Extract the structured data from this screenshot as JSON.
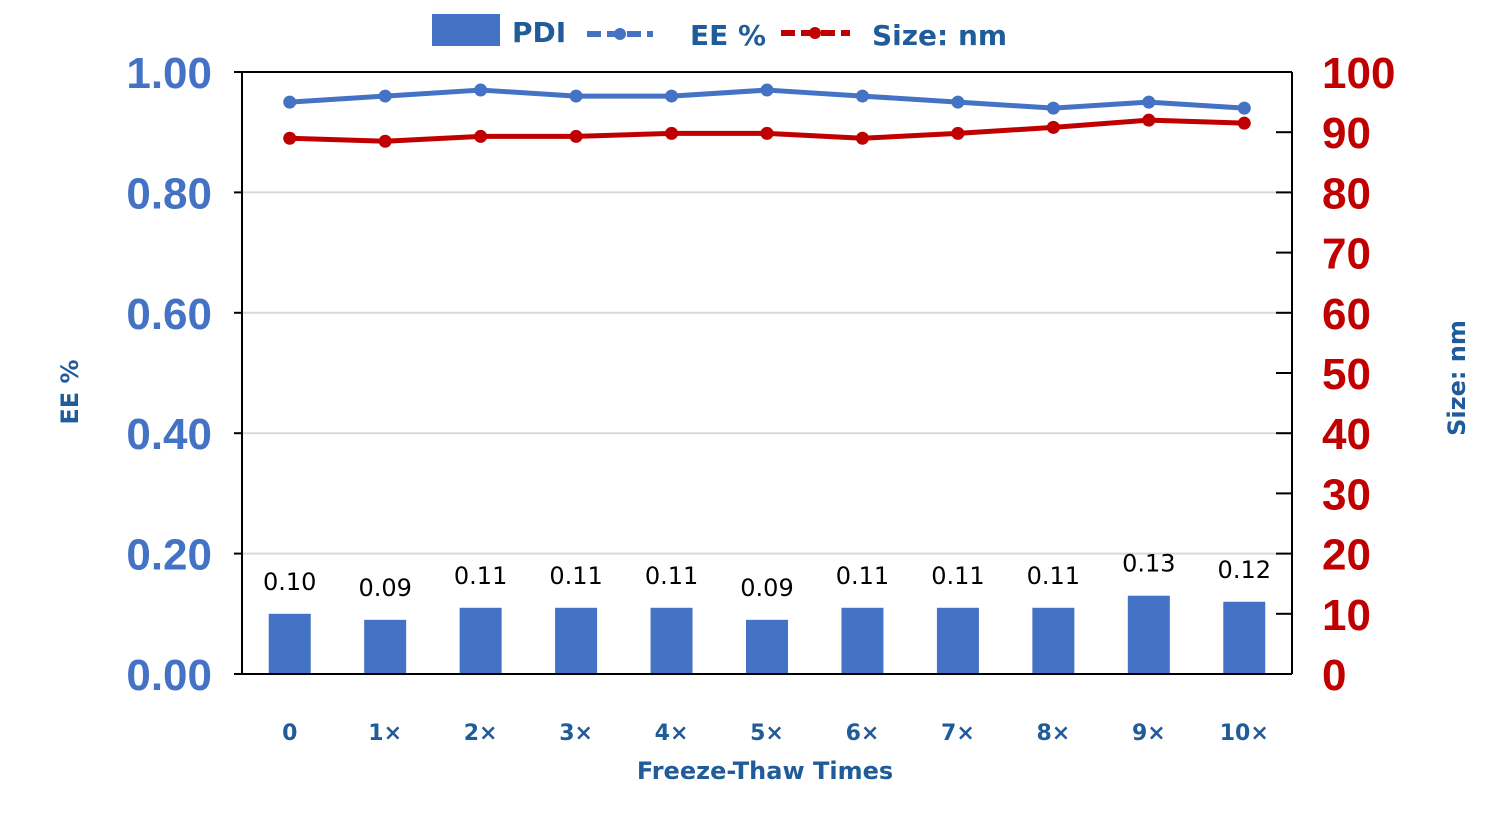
{
  "colors": {
    "pdi": "#4472C4",
    "ee": "#4472C4",
    "size": "#C00000",
    "axis_left_text": "#4472C4",
    "axis_right_text": "#C00000",
    "label_text": "#1F5C99",
    "grid": "#D9D9D9",
    "axis": "#000000"
  },
  "chart_data": {
    "type": "bar",
    "categories": [
      "0",
      "1×",
      "2×",
      "3×",
      "4×",
      "5×",
      "6×",
      "7×",
      "8×",
      "9×",
      "10×"
    ],
    "series": [
      {
        "name": "PDI",
        "type": "bar",
        "axis": "left",
        "values": [
          0.1,
          0.09,
          0.11,
          0.11,
          0.11,
          0.09,
          0.11,
          0.11,
          0.11,
          0.13,
          0.12
        ],
        "data_labels": [
          "0.10",
          "0.09",
          "0.11",
          "0.11",
          "0.11",
          "0.09",
          "0.11",
          "0.11",
          "0.11",
          "0.13",
          "0.12"
        ]
      },
      {
        "name": "EE %",
        "type": "line",
        "axis": "left",
        "values": [
          0.95,
          0.96,
          0.97,
          0.96,
          0.96,
          0.97,
          0.96,
          0.95,
          0.94,
          0.95,
          0.94
        ]
      },
      {
        "name": "Size: nm",
        "type": "line",
        "axis": "right",
        "values": [
          89,
          88.5,
          89.3,
          89.3,
          89.8,
          89.8,
          89,
          89.8,
          90.8,
          92,
          91.5
        ]
      }
    ],
    "xlabel": "Freeze-Thaw Times",
    "ylabel": "EE %",
    "y2label": "Size: nm",
    "ylim": [
      0,
      1
    ],
    "y2lim": [
      0,
      100
    ],
    "yticks": [
      "0.00",
      "0.20",
      "0.40",
      "0.60",
      "0.80",
      "1.00"
    ],
    "y2ticks": [
      "0",
      "10",
      "20",
      "30",
      "40",
      "50",
      "60",
      "70",
      "80",
      "90",
      "100"
    ],
    "grid": true,
    "legend": "top-center"
  }
}
